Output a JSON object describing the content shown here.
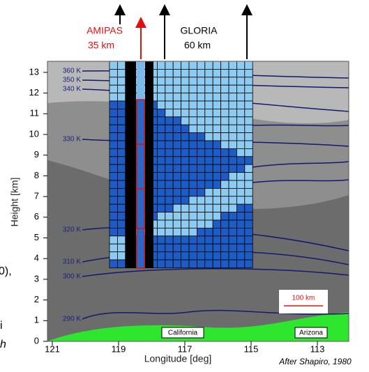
{
  "instruments": [
    {
      "name": "AMIPAS",
      "range": "35 km"
    },
    {
      "name": "GLORIA",
      "range": "60 km"
    }
  ],
  "y_axis": {
    "label": "Height [km]",
    "ticks": [
      0,
      1,
      2,
      3,
      4,
      5,
      6,
      7,
      8,
      9,
      10,
      11,
      12,
      13
    ]
  },
  "x_axis": {
    "label": "Longitude [deg]",
    "ticks": [
      121,
      119,
      117,
      115,
      113
    ]
  },
  "isentropes": [
    "360 K",
    "350 K",
    "340 K",
    "330 K",
    "320 K",
    "310 K",
    "300 K",
    "290 K"
  ],
  "regions": [
    "California",
    "Arizona"
  ],
  "scale_bar": "100 km",
  "credit": "After Shapiro, 1980",
  "margin_fragments": [
    "0),",
    "i",
    "h"
  ]
}
